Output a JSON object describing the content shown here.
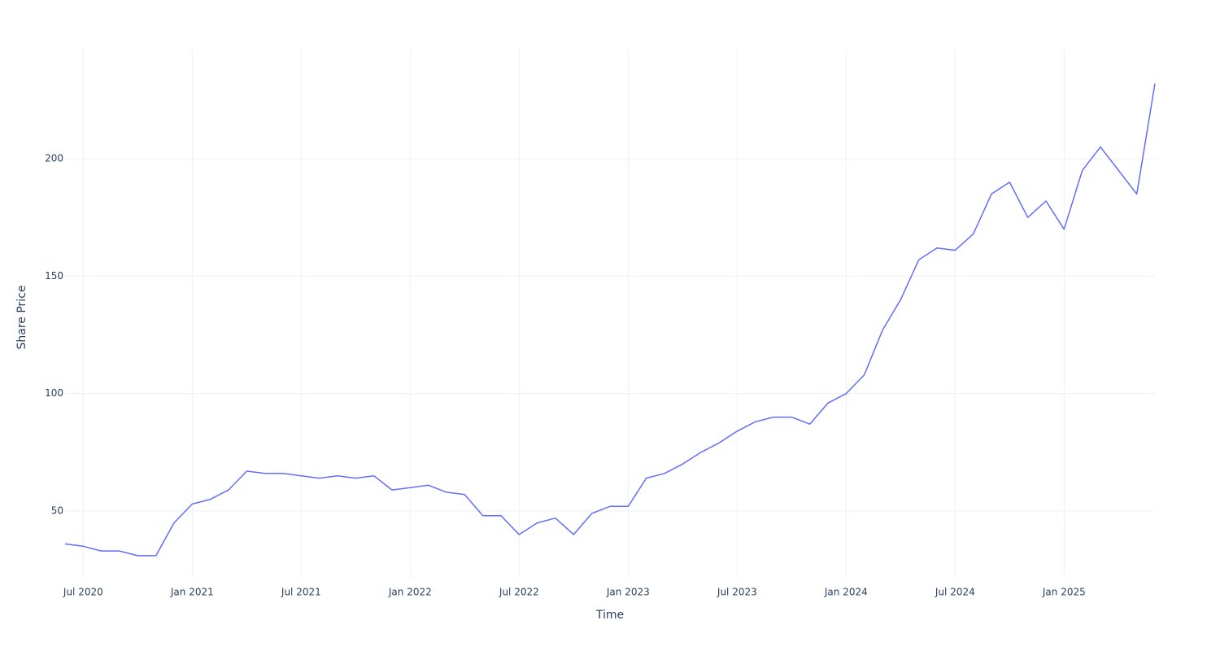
{
  "chart_data": {
    "type": "line",
    "x_title": "Time",
    "y_title": "Share Price",
    "x": [
      "2020-06",
      "2020-07",
      "2020-08",
      "2020-09",
      "2020-10",
      "2020-11",
      "2020-12",
      "2021-01",
      "2021-02",
      "2021-03",
      "2021-04",
      "2021-05",
      "2021-06",
      "2021-07",
      "2021-08",
      "2021-09",
      "2021-10",
      "2021-11",
      "2021-12",
      "2022-01",
      "2022-02",
      "2022-03",
      "2022-04",
      "2022-05",
      "2022-06",
      "2022-07",
      "2022-08",
      "2022-09",
      "2022-10",
      "2022-11",
      "2022-12",
      "2023-01",
      "2023-02",
      "2023-03",
      "2023-04",
      "2023-05",
      "2023-06",
      "2023-07",
      "2023-08",
      "2023-09",
      "2023-10",
      "2023-11",
      "2023-12",
      "2024-01",
      "2024-02",
      "2024-03",
      "2024-04",
      "2024-05",
      "2024-06",
      "2024-07",
      "2024-08",
      "2024-09",
      "2024-10",
      "2024-11",
      "2024-12",
      "2025-01",
      "2025-02",
      "2025-03",
      "2025-04",
      "2025-05",
      "2025-06"
    ],
    "series": [
      {
        "name": "Share Price",
        "color": "#636efa",
        "values": [
          36,
          35,
          33,
          33,
          31,
          31,
          45,
          53,
          55,
          59,
          67,
          66,
          66,
          65,
          64,
          65,
          64,
          65,
          59,
          60,
          61,
          58,
          57,
          48,
          48,
          40,
          45,
          47,
          40,
          49,
          52,
          52,
          64,
          66,
          70,
          75,
          79,
          84,
          88,
          90,
          90,
          87,
          96,
          100,
          108,
          127,
          140,
          157,
          162,
          161,
          168,
          185,
          190,
          175,
          182,
          170,
          195,
          205,
          195,
          185,
          232
        ]
      }
    ],
    "xlim": [
      "2020-06",
      "2025-06"
    ],
    "xticks": [
      {
        "value": "2020-07",
        "label": "Jul 2020"
      },
      {
        "value": "2021-01",
        "label": "Jan 2021"
      },
      {
        "value": "2021-07",
        "label": "Jul 2021"
      },
      {
        "value": "2022-01",
        "label": "Jan 2022"
      },
      {
        "value": "2022-07",
        "label": "Jul 2022"
      },
      {
        "value": "2023-01",
        "label": "Jan 2023"
      },
      {
        "value": "2023-07",
        "label": "Jul 2023"
      },
      {
        "value": "2024-01",
        "label": "Jan 2024"
      },
      {
        "value": "2024-07",
        "label": "Jul 2024"
      },
      {
        "value": "2025-01",
        "label": "Jan 2025"
      }
    ],
    "ylim": [
      21.6,
      246.8
    ],
    "yticks": [
      50,
      100,
      150,
      200
    ],
    "grid": true
  }
}
